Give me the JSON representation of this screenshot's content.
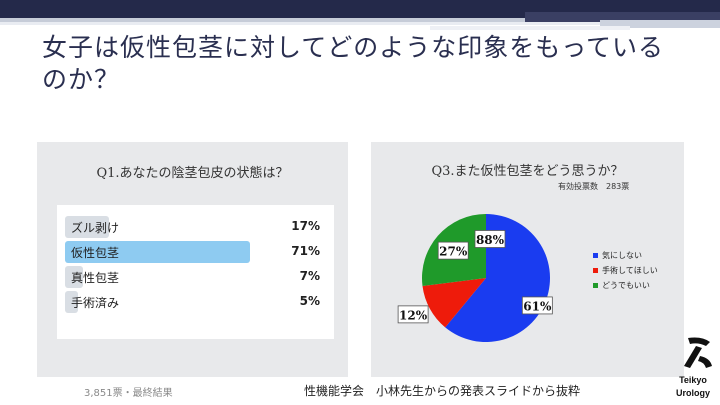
{
  "slide": {
    "title": "女子は仮性包茎に対してどのような印象をもっているのか？",
    "caption": "性機能学会　小林先生からの発表スライドから抜粋",
    "logo": {
      "line1": "Teikyo",
      "line2": "Urology"
    }
  },
  "poll": {
    "title": "Q1.あなたの陰茎包皮の状態は？",
    "footnote": "3,851票・最終結果"
  },
  "pie": {
    "title": "Q3.また仮性包茎をどう思うか？",
    "votes_label": "有効投票数　283票"
  },
  "colors": {
    "poll_bar": "#d9dee4",
    "poll_bar_selected": "#8ecbf1",
    "pie_blue": "#1a3cf0",
    "pie_red": "#ee1b0b",
    "pie_green": "#1f9a2a"
  },
  "chart_data": [
    {
      "type": "bar",
      "title": "Q1.あなたの陰茎包皮の状態は？",
      "categories": [
        "ズル剥け",
        "仮性包茎",
        "真性包茎",
        "手術済み"
      ],
      "values": [
        17,
        71,
        7,
        5
      ],
      "unit": "%",
      "selected": "仮性包茎",
      "total_votes_label": "3,851票・最終結果"
    },
    {
      "type": "pie",
      "title": "Q3.また仮性包茎をどう思うか？",
      "categories": [
        "気にしない",
        "手術してほしい",
        "どうでもいい"
      ],
      "values": [
        61,
        12,
        27
      ],
      "unit": "%",
      "legend_position": "right",
      "annotation": "88%",
      "votes_label": "有効投票数　283票"
    }
  ]
}
